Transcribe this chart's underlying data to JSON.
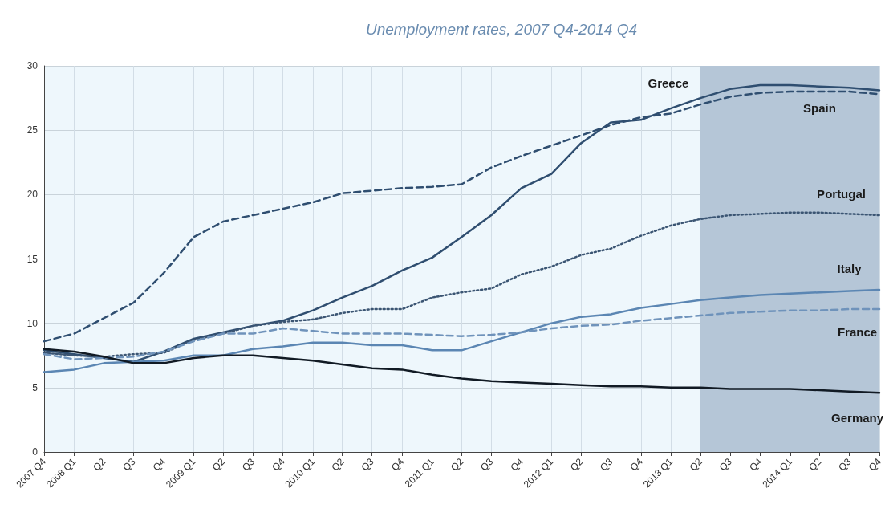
{
  "chart_data": {
    "type": "line",
    "title": "Unemployment rates, 2007 Q4-2014 Q4",
    "x": [
      "2007-10",
      "2008-01",
      "2008-04",
      "2008-07",
      "2008-10",
      "2009-01",
      "2009-04",
      "2009-07",
      "2009-10",
      "2010-01",
      "2010-04",
      "2010-07",
      "2010-10",
      "2011-01",
      "2011-04",
      "2011-07",
      "2011-10",
      "2012-01",
      "2012-04",
      "2012-07",
      "2012-10",
      "2013-01",
      "2013-04",
      "2013-07",
      "2013-10",
      "2014-01",
      "2014-04",
      "2014-07",
      "2014-10"
    ],
    "xlim": [
      "2007-10",
      "2014-10"
    ],
    "xticks": [
      {
        "value": "2007-10",
        "label": "2007 Q4"
      },
      {
        "value": "2008-01",
        "label": "2008 Q1"
      },
      {
        "value": "2008-04",
        "label": "Q2"
      },
      {
        "value": "2008-07",
        "label": "Q3"
      },
      {
        "value": "2008-10",
        "label": "Q4"
      },
      {
        "value": "2009-01",
        "label": "2009 Q1"
      },
      {
        "value": "2009-04",
        "label": "Q2"
      },
      {
        "value": "2009-07",
        "label": "Q3"
      },
      {
        "value": "2009-10",
        "label": "Q4"
      },
      {
        "value": "2010-01",
        "label": "2010 Q1"
      },
      {
        "value": "2010-04",
        "label": "Q2"
      },
      {
        "value": "2010-07",
        "label": "Q3"
      },
      {
        "value": "2010-10",
        "label": "Q4"
      },
      {
        "value": "2011-01",
        "label": "2011 Q1"
      },
      {
        "value": "2011-04",
        "label": "Q2"
      },
      {
        "value": "2011-07",
        "label": "Q3"
      },
      {
        "value": "2011-10",
        "label": "Q4"
      },
      {
        "value": "2012-01",
        "label": "2012 Q1"
      },
      {
        "value": "2012-04",
        "label": "Q2"
      },
      {
        "value": "2012-07",
        "label": "Q3"
      },
      {
        "value": "2012-10",
        "label": "Q4"
      },
      {
        "value": "2013-01",
        "label": "2013 Q1"
      },
      {
        "value": "2013-04",
        "label": "Q2"
      },
      {
        "value": "2013-07",
        "label": "Q3"
      },
      {
        "value": "2013-10",
        "label": "Q4"
      },
      {
        "value": "2014-01",
        "label": "2014 Q1"
      },
      {
        "value": "2014-04",
        "label": "Q2"
      },
      {
        "value": "2014-07",
        "label": "Q3"
      },
      {
        "value": "2014-10",
        "label": "Q4"
      }
    ],
    "ylim": [
      0,
      30
    ],
    "yticks": [
      0,
      5,
      10,
      15,
      20,
      25,
      30
    ],
    "grid": true,
    "legend": false,
    "marker": "none",
    "bands": [
      {
        "axis": "x",
        "from": "2013-04",
        "to": "2014-10",
        "color": "#b5c6d7"
      }
    ],
    "series": [
      {
        "name": "Greece",
        "color": "#2f4e70",
        "line_style": "solid",
        "values": [
          7.9,
          7.6,
          7.3,
          7.0,
          7.8,
          8.8,
          9.3,
          9.8,
          10.2,
          11.0,
          12.0,
          12.9,
          14.1,
          15.1,
          16.7,
          18.4,
          20.5,
          21.6,
          24.0,
          25.6,
          25.8,
          26.7,
          27.5,
          28.2,
          28.5,
          28.5,
          28.4,
          28.3,
          28.1
        ]
      },
      {
        "name": "Spain",
        "color": "#2f4e70",
        "line_style": "dashed",
        "values": [
          8.6,
          9.2,
          10.4,
          11.6,
          13.9,
          16.7,
          17.9,
          18.4,
          18.9,
          19.4,
          20.1,
          20.3,
          20.5,
          20.6,
          20.8,
          22.1,
          23.0,
          23.8,
          24.6,
          25.4,
          26.0,
          26.3,
          27.0,
          27.6,
          27.9,
          28.0,
          28.0,
          28.0,
          27.8
        ]
      },
      {
        "name": "Portugal",
        "color": "#3b5573",
        "line_style": "dotted",
        "values": [
          7.7,
          7.5,
          7.4,
          7.6,
          7.7,
          8.7,
          9.2,
          9.8,
          10.1,
          10.3,
          10.8,
          11.1,
          11.1,
          12.0,
          12.4,
          12.7,
          13.8,
          14.4,
          15.3,
          15.8,
          16.8,
          17.6,
          18.1,
          18.4,
          18.5,
          18.6,
          18.6,
          18.5,
          18.4
        ]
      },
      {
        "name": "Italy",
        "color": "#5b86b3",
        "line_style": "solid",
        "values": [
          6.2,
          6.4,
          6.9,
          7.0,
          7.1,
          7.5,
          7.5,
          8.0,
          8.2,
          8.5,
          8.5,
          8.3,
          8.3,
          7.9,
          7.9,
          8.6,
          9.3,
          10.0,
          10.5,
          10.7,
          11.2,
          11.5,
          11.8,
          12.0,
          12.2,
          12.3,
          12.4,
          12.5,
          12.6
        ]
      },
      {
        "name": "France",
        "color": "#6f93bb",
        "line_style": "dashed",
        "values": [
          7.6,
          7.2,
          7.3,
          7.4,
          7.8,
          8.6,
          9.2,
          9.2,
          9.6,
          9.4,
          9.2,
          9.2,
          9.2,
          9.1,
          9.0,
          9.1,
          9.3,
          9.6,
          9.8,
          9.9,
          10.2,
          10.4,
          10.6,
          10.8,
          10.9,
          11.0,
          11.0,
          11.1,
          11.1
        ]
      },
      {
        "name": "Germany",
        "color": "#111a24",
        "line_style": "solid",
        "values": [
          8.0,
          7.8,
          7.4,
          6.9,
          6.9,
          7.3,
          7.5,
          7.5,
          7.3,
          7.1,
          6.8,
          6.5,
          6.4,
          6.0,
          5.7,
          5.5,
          5.4,
          5.3,
          5.2,
          5.1,
          5.1,
          5.0,
          5.0,
          4.9,
          4.9,
          4.9,
          4.8,
          4.7,
          4.6
        ]
      }
    ]
  }
}
